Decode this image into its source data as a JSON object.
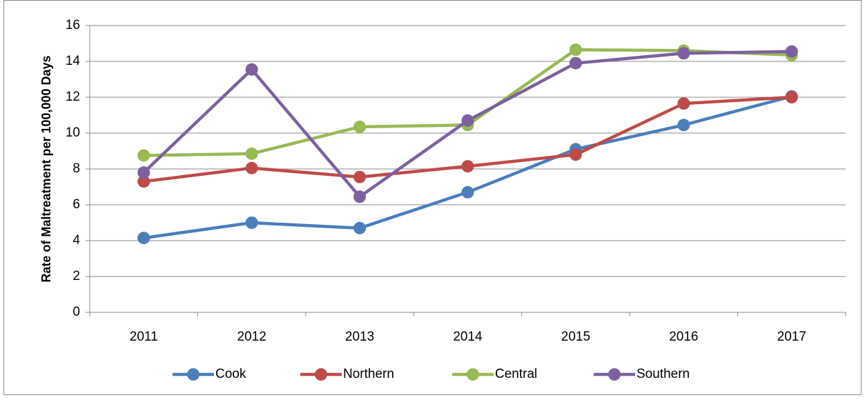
{
  "chart_data": {
    "type": "line",
    "y_label": "Rate of Maltreatment per 100,000 Days",
    "categories": [
      "2011",
      "2012",
      "2013",
      "2014",
      "2015",
      "2016",
      "2017"
    ],
    "series": [
      {
        "name": "Cook",
        "color": "#4a7ebb",
        "values": [
          4.15,
          5.0,
          4.7,
          6.7,
          9.1,
          10.45,
          12.05
        ]
      },
      {
        "name": "Northern",
        "color": "#be4b48",
        "values": [
          7.3,
          8.05,
          7.55,
          8.15,
          8.8,
          11.65,
          12.0
        ]
      },
      {
        "name": "Central",
        "color": "#98b954",
        "values": [
          8.75,
          8.85,
          10.35,
          10.45,
          14.65,
          14.6,
          14.35
        ]
      },
      {
        "name": "Southern",
        "color": "#7d60a0",
        "values": [
          7.8,
          13.55,
          6.45,
          10.7,
          13.9,
          14.45,
          14.55
        ]
      }
    ],
    "ylim": [
      0,
      16
    ],
    "yticks": [
      0,
      2,
      4,
      6,
      8,
      10,
      12,
      14,
      16
    ],
    "grid": true,
    "legend": "bottom"
  }
}
